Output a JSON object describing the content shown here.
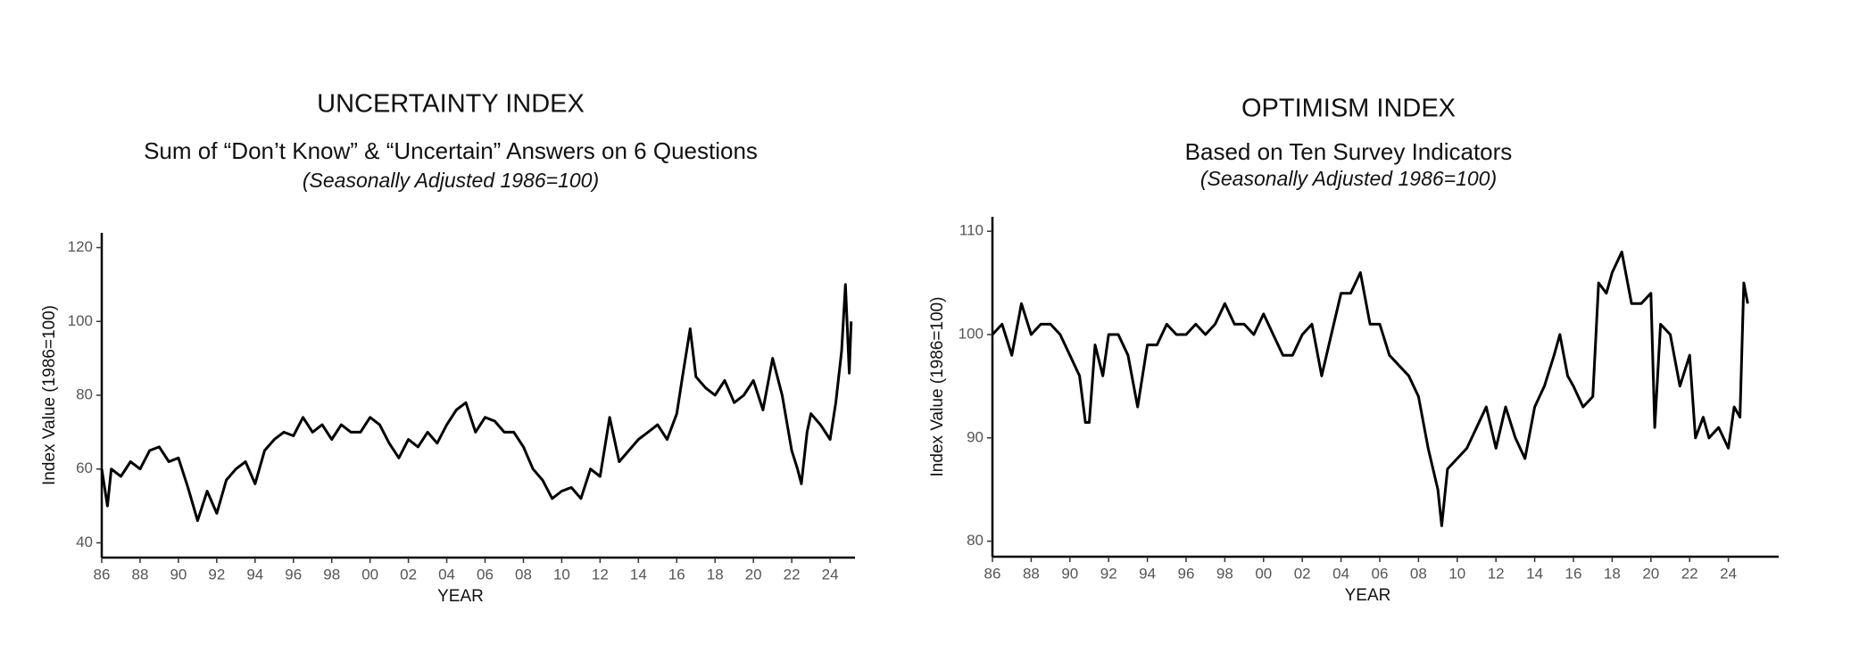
{
  "chart_data": [
    {
      "type": "line",
      "title": "UNCERTAINTY INDEX",
      "subtitle": "Sum of “Don’t Know” & “Uncertain” Answers on 6 Questions",
      "note": "(Seasonally Adjusted 1986=100)",
      "x_label": "YEAR",
      "y_label": "Index Value (1986=100)",
      "xlim": [
        1986,
        2025.3
      ],
      "ylim": [
        36,
        124
      ],
      "yticks": [
        40,
        60,
        80,
        100,
        120
      ],
      "xticks": [
        {
          "value": 1986,
          "label": "86"
        },
        {
          "value": 1988,
          "label": "88"
        },
        {
          "value": 1990,
          "label": "90"
        },
        {
          "value": 1992,
          "label": "92"
        },
        {
          "value": 1994,
          "label": "94"
        },
        {
          "value": 1996,
          "label": "96"
        },
        {
          "value": 1998,
          "label": "98"
        },
        {
          "value": 2000,
          "label": "00"
        },
        {
          "value": 2002,
          "label": "02"
        },
        {
          "value": 2004,
          "label": "04"
        },
        {
          "value": 2006,
          "label": "06"
        },
        {
          "value": 2008,
          "label": "08"
        },
        {
          "value": 2010,
          "label": "10"
        },
        {
          "value": 2012,
          "label": "12"
        },
        {
          "value": 2014,
          "label": "14"
        },
        {
          "value": 2016,
          "label": "16"
        },
        {
          "value": 2018,
          "label": "18"
        },
        {
          "value": 2020,
          "label": "20"
        },
        {
          "value": 2022,
          "label": "22"
        },
        {
          "value": 2024,
          "label": "24"
        }
      ],
      "x": [
        1986,
        1986.3,
        1986.5,
        1987,
        1987.5,
        1988,
        1988.5,
        1989,
        1989.5,
        1990,
        1990.5,
        1991,
        1991.5,
        1992,
        1992.5,
        1993,
        1993.5,
        1994,
        1994.5,
        1995,
        1995.5,
        1996,
        1996.5,
        1997,
        1997.5,
        1998,
        1998.5,
        1999,
        1999.5,
        2000,
        2000.5,
        2001,
        2001.5,
        2002,
        2002.5,
        2003,
        2003.5,
        2004,
        2004.5,
        2005,
        2005.5,
        2006,
        2006.5,
        2007,
        2007.5,
        2008,
        2008.5,
        2009,
        2009.5,
        2010,
        2010.5,
        2011,
        2011.5,
        2012,
        2012.5,
        2013,
        2013.5,
        2014,
        2014.5,
        2015,
        2015.5,
        2016,
        2016.3,
        2016.7,
        2017,
        2017.5,
        2018,
        2018.5,
        2019,
        2019.5,
        2020,
        2020.5,
        2021,
        2021.5,
        2022,
        2022.3,
        2022.5,
        2022.8,
        2023,
        2023.5,
        2024,
        2024.3,
        2024.6,
        2024.8,
        2025,
        2025.1
      ],
      "series": [
        {
          "name": "Uncertainty",
          "color": "#000000",
          "values": [
            60,
            50,
            60,
            58,
            62,
            60,
            65,
            66,
            62,
            63,
            55,
            46,
            54,
            48,
            57,
            60,
            62,
            56,
            65,
            68,
            70,
            69,
            74,
            70,
            72,
            68,
            72,
            70,
            70,
            74,
            72,
            67,
            63,
            68,
            66,
            70,
            67,
            72,
            76,
            78,
            70,
            74,
            73,
            70,
            70,
            66,
            60,
            57,
            52,
            54,
            55,
            52,
            60,
            58,
            74,
            62,
            65,
            68,
            70,
            72,
            68,
            75,
            85,
            98,
            85,
            82,
            80,
            84,
            78,
            80,
            84,
            76,
            90,
            80,
            65,
            60,
            56,
            70,
            75,
            72,
            68,
            78,
            92,
            110,
            86,
            100
          ]
        }
      ]
    },
    {
      "type": "line",
      "title": "OPTIMISM INDEX",
      "subtitle": "Based on Ten Survey Indicators",
      "note": "(Seasonally Adjusted 1986=100)",
      "x_label": "YEAR",
      "y_label": "Index Value (1986=100)",
      "xlim": [
        1986,
        2026.6
      ],
      "ylim": [
        78.5,
        111.4
      ],
      "yticks": [
        80,
        90,
        100,
        110
      ],
      "xticks": [
        {
          "value": 1986,
          "label": "86"
        },
        {
          "value": 1988,
          "label": "88"
        },
        {
          "value": 1990,
          "label": "90"
        },
        {
          "value": 1992,
          "label": "92"
        },
        {
          "value": 1994,
          "label": "94"
        },
        {
          "value": 1996,
          "label": "96"
        },
        {
          "value": 1998,
          "label": "98"
        },
        {
          "value": 2000,
          "label": "00"
        },
        {
          "value": 2002,
          "label": "02"
        },
        {
          "value": 2004,
          "label": "04"
        },
        {
          "value": 2006,
          "label": "06"
        },
        {
          "value": 2008,
          "label": "08"
        },
        {
          "value": 2010,
          "label": "10"
        },
        {
          "value": 2012,
          "label": "12"
        },
        {
          "value": 2014,
          "label": "14"
        },
        {
          "value": 2016,
          "label": "16"
        },
        {
          "value": 2018,
          "label": "18"
        },
        {
          "value": 2020,
          "label": "20"
        },
        {
          "value": 2022,
          "label": "22"
        },
        {
          "value": 2024,
          "label": "24"
        }
      ],
      "x": [
        1986,
        1986.5,
        1987,
        1987.5,
        1988,
        1988.5,
        1989,
        1989.5,
        1990,
        1990.5,
        1990.8,
        1991,
        1991.3,
        1991.7,
        1992,
        1992.5,
        1993,
        1993.5,
        1994,
        1994.5,
        1995,
        1995.5,
        1996,
        1996.5,
        1997,
        1997.5,
        1998,
        1998.5,
        1999,
        1999.5,
        2000,
        2000.5,
        2001,
        2001.5,
        2002,
        2002.5,
        2003,
        2003.5,
        2004,
        2004.5,
        2005,
        2005.5,
        2006,
        2006.5,
        2007,
        2007.5,
        2008,
        2008.5,
        2009,
        2009.2,
        2009.5,
        2010,
        2010.5,
        2011,
        2011.5,
        2012,
        2012.5,
        2013,
        2013.5,
        2014,
        2014.5,
        2015,
        2015.3,
        2015.7,
        2016,
        2016.5,
        2017,
        2017.3,
        2017.7,
        2018,
        2018.5,
        2019,
        2019.5,
        2020,
        2020.2,
        2020.5,
        2021,
        2021.5,
        2022,
        2022.3,
        2022.7,
        2023,
        2023.5,
        2024,
        2024.3,
        2024.6,
        2024.8,
        2025
      ],
      "series": [
        {
          "name": "Optimism",
          "color": "#000000",
          "values": [
            100,
            101,
            98,
            103,
            100,
            101,
            101,
            100,
            98,
            96,
            91.5,
            91.5,
            99,
            96,
            100,
            100,
            98,
            93,
            99,
            99,
            101,
            100,
            100,
            101,
            100,
            101,
            103,
            101,
            101,
            100,
            102,
            100,
            98,
            98,
            100,
            101,
            96,
            100,
            104,
            104,
            106,
            101,
            101,
            98,
            97,
            96,
            94,
            89,
            85,
            81.5,
            87,
            88,
            89,
            91,
            93,
            89,
            93,
            90,
            88,
            93,
            95,
            98,
            100,
            96,
            95,
            93,
            94,
            105,
            104,
            106,
            108,
            103,
            103,
            104,
            91,
            101,
            100,
            95,
            98,
            90,
            92,
            90,
            91,
            89,
            93,
            92,
            105,
            103
          ]
        }
      ]
    }
  ]
}
